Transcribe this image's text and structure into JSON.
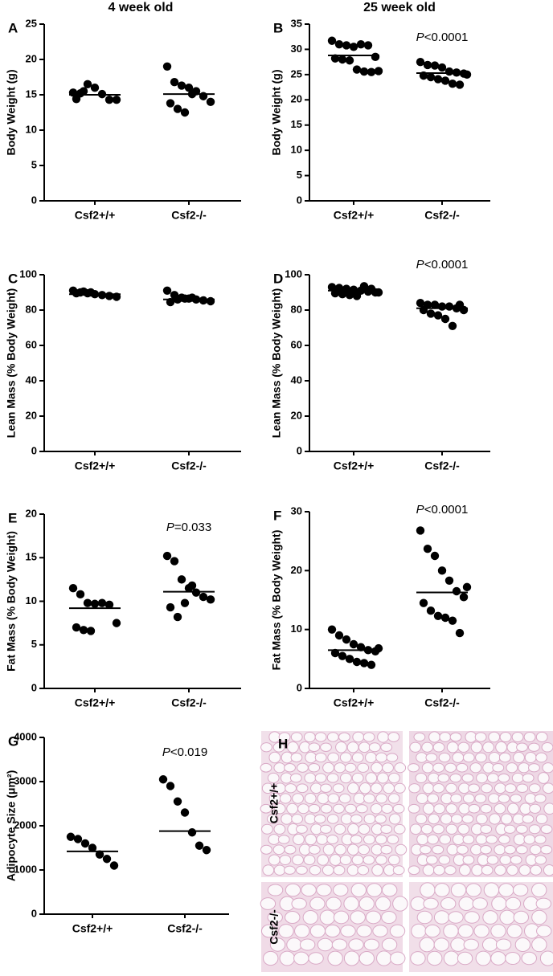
{
  "column_titles": [
    "4 week old",
    "25 week old"
  ],
  "chart_data": [
    {
      "type": "dot",
      "panel": "A",
      "y_label": "Body Weight (g)",
      "categories": [
        "Csf2+/+",
        "Csf2-/-"
      ],
      "values": [
        [
          15.3,
          15.2,
          16.5,
          16.0,
          15.1,
          14.3,
          14.3,
          14.4,
          15.5
        ],
        [
          19.0,
          16.8,
          16.3,
          16.0,
          15.5,
          14.8,
          14.0,
          13.8,
          13.0,
          12.5,
          15.1
        ]
      ],
      "means": [
        15.0,
        15.1
      ],
      "ylim": [
        0,
        25
      ],
      "yticks": [
        0,
        5,
        10,
        15,
        20,
        25
      ],
      "color": "#000000"
    },
    {
      "type": "dot",
      "panel": "B",
      "y_label": "Body Weight (g)",
      "annotation": "P<0.0001",
      "categories": [
        "Csf2+/+",
        "Csf2-/-"
      ],
      "values": [
        [
          31.7,
          31.0,
          30.8,
          30.5,
          31.0,
          30.8,
          28.5,
          28.2,
          28.0,
          27.8,
          26.0,
          25.6,
          25.5,
          25.7
        ],
        [
          27.5,
          26.9,
          26.8,
          26.4,
          25.6,
          25.4,
          25.2,
          24.8,
          24.5,
          24.1,
          23.8,
          23.2,
          23.0,
          25.0
        ]
      ],
      "means": [
        28.8,
        25.3
      ],
      "ylim": [
        0,
        35
      ],
      "yticks": [
        0,
        5,
        10,
        15,
        20,
        25,
        30,
        35
      ],
      "color": "#000000"
    },
    {
      "type": "dot",
      "panel": "C",
      "y_label": "Lean Mass (% Body Weight)",
      "categories": [
        "Csf2+/+",
        "Csf2-/-"
      ],
      "values": [
        [
          91,
          90,
          89.5,
          89,
          88.5,
          88,
          87.5,
          89.5,
          90.5,
          90
        ],
        [
          91,
          88.5,
          87,
          86.5,
          86,
          85.5,
          85,
          84.5,
          86,
          86.5,
          87
        ]
      ],
      "means": [
        89,
        86
      ],
      "ylim": [
        0,
        100
      ],
      "yticks": [
        0,
        20,
        40,
        60,
        80,
        100
      ],
      "color": "#000000"
    },
    {
      "type": "dot",
      "panel": "D",
      "y_label": "Lean Mass (% Body Weight)",
      "annotation": "P<0.0001",
      "categories": [
        "Csf2+/+",
        "Csf2-/-"
      ],
      "values": [
        [
          93,
          92.5,
          92,
          91.5,
          91,
          90.5,
          90,
          89.5,
          89,
          88.5,
          88,
          93.5,
          92,
          90
        ],
        [
          84,
          83,
          83,
          82,
          82,
          81,
          80,
          80,
          78,
          77,
          75,
          71,
          83
        ]
      ],
      "means": [
        91,
        81
      ],
      "ylim": [
        0,
        100
      ],
      "yticks": [
        0,
        20,
        40,
        60,
        80,
        100
      ],
      "color": "#000000"
    },
    {
      "type": "dot",
      "panel": "E",
      "y_label": "Fat Mass (% Body Weight)",
      "annotation": "P=0.033",
      "categories": [
        "Csf2+/+",
        "Csf2-/-"
      ],
      "values": [
        [
          11.5,
          10.8,
          9.8,
          9.7,
          9.8,
          9.6,
          7.5,
          7.0,
          6.7,
          6.6
        ],
        [
          15.2,
          14.6,
          12.5,
          11.5,
          11.0,
          10.5,
          10.2,
          9.3,
          8.2,
          9.8,
          11.8
        ]
      ],
      "means": [
        9.2,
        11.1
      ],
      "ylim": [
        0,
        20
      ],
      "yticks": [
        0,
        5,
        10,
        15,
        20
      ],
      "color": "#000000"
    },
    {
      "type": "dot",
      "panel": "F",
      "y_label": "Fat Mass (% Body Weight)",
      "annotation": "P<0.0001",
      "categories": [
        "Csf2+/+",
        "Csf2-/-"
      ],
      "values": [
        [
          10.0,
          9.0,
          8.3,
          7.5,
          7.0,
          6.5,
          6.3,
          6.0,
          5.5,
          5.0,
          4.5,
          4.3,
          4.0,
          6.8
        ],
        [
          26.8,
          23.7,
          22.5,
          20.0,
          18.3,
          16.5,
          15.5,
          14.5,
          13.2,
          12.3,
          12.0,
          11.5,
          9.4,
          17.2
        ]
      ],
      "means": [
        6.5,
        16.3
      ],
      "ylim": [
        0,
        30
      ],
      "yticks": [
        0,
        10,
        20,
        30
      ],
      "color": "#000000"
    },
    {
      "type": "dot",
      "panel": "G",
      "y_label": "Adipocyte Size  (μm²)",
      "annotation": "P<0.019",
      "categories": [
        "Csf2+/+",
        "Csf2-/-"
      ],
      "values": [
        [
          1750,
          1700,
          1600,
          1500,
          1350,
          1250,
          1100
        ],
        [
          3050,
          2900,
          2550,
          2300,
          1850,
          1550,
          1450
        ]
      ],
      "means": [
        1420,
        1880
      ],
      "ylim": [
        0,
        4000
      ],
      "yticks": [
        0,
        1000,
        2000,
        3000,
        4000
      ],
      "color": "#000000"
    }
  ],
  "histology": {
    "panel": "H",
    "rows": [
      "Csf2+/+",
      "Csf2-/-"
    ]
  }
}
